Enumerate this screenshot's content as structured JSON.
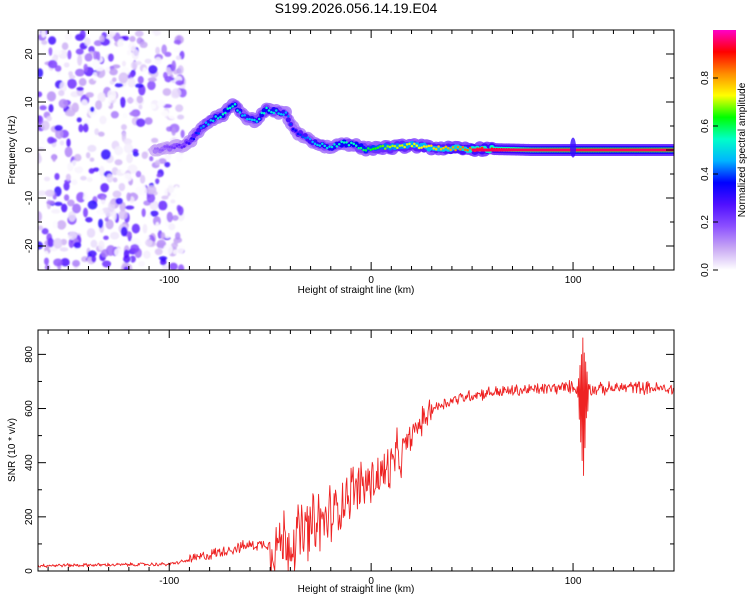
{
  "title": "S199.2026.056.14.19.E04",
  "chart_data": [
    {
      "type": "heatmap",
      "name": "spectrogram",
      "xlabel": "Height of straight line (km)",
      "ylabel": "Frequency (Hz)",
      "xlim": [
        -165,
        150
      ],
      "ylim": [
        -25,
        25
      ],
      "xticks": [
        -100,
        0,
        100
      ],
      "yticks": [
        -20,
        -10,
        0,
        10,
        20
      ],
      "colorbar": {
        "label": "Normalized spectral amplitude",
        "range": [
          0,
          1
        ],
        "ticks": [
          "0.0",
          "0.2",
          "0.4",
          "0.6",
          "0.8"
        ],
        "tick_values": [
          0.0,
          0.2,
          0.4,
          0.6,
          0.8
        ],
        "colors": [
          "#ffffff",
          "#c8a8f4",
          "#8c50ff",
          "#5010ff",
          "#0000ff",
          "#00b4ff",
          "#00ffc8",
          "#00ff00",
          "#ffff00",
          "#ff8c00",
          "#ff0000",
          "#ff00c8"
        ]
      },
      "trace": {
        "x": [
          -107,
          -100,
          -93,
          -88,
          -83,
          -78,
          -73,
          -68,
          -63,
          -57,
          -52,
          -47,
          -42,
          -38,
          -34,
          -30,
          -25,
          -20,
          -14,
          -8,
          -3,
          3,
          10,
          20,
          30,
          40,
          50,
          60,
          80,
          100,
          120,
          150
        ],
        "y": [
          0,
          0.5,
          0.8,
          2.5,
          5,
          6.5,
          7.5,
          9.5,
          7,
          6,
          8.5,
          8,
          7.5,
          4,
          3,
          2,
          1,
          0.5,
          1.5,
          1,
          0.2,
          0.5,
          0.5,
          1,
          0.5,
          0.3,
          0.2,
          0.2,
          0,
          0,
          0,
          0
        ],
        "amplitude": [
          0.15,
          0.2,
          0.25,
          0.35,
          0.45,
          0.5,
          0.55,
          0.55,
          0.45,
          0.5,
          0.55,
          0.5,
          0.45,
          0.35,
          0.4,
          0.45,
          0.5,
          0.5,
          0.55,
          0.55,
          0.6,
          0.65,
          0.7,
          0.72,
          0.75,
          0.8,
          0.85,
          0.9,
          0.95,
          1.0,
          1.0,
          1.0
        ]
      }
    },
    {
      "type": "line",
      "name": "snr",
      "xlabel": "Height of straight line (km)",
      "ylabel": "SNR (10 * v/v)",
      "xlim": [
        -165,
        150
      ],
      "ylim": [
        0,
        890
      ],
      "xticks": [
        -100,
        0,
        100
      ],
      "yticks": [
        0,
        200,
        400,
        600,
        800
      ],
      "color": "#ee2222",
      "baseline": {
        "x": [
          -165,
          -100,
          -90,
          -80,
          -70,
          -60,
          -50,
          -40,
          -30,
          -20,
          -10,
          0,
          10,
          20,
          25,
          30,
          40,
          50,
          60,
          80,
          100,
          110,
          130,
          150
        ],
        "y": [
          20,
          25,
          40,
          60,
          80,
          95,
          100,
          110,
          150,
          200,
          300,
          330,
          380,
          500,
          550,
          600,
          630,
          650,
          660,
          670,
          680,
          670,
          680,
          670
        ]
      },
      "features": [
        {
          "x": 105,
          "peak": 890,
          "trough": 320
        }
      ]
    }
  ]
}
